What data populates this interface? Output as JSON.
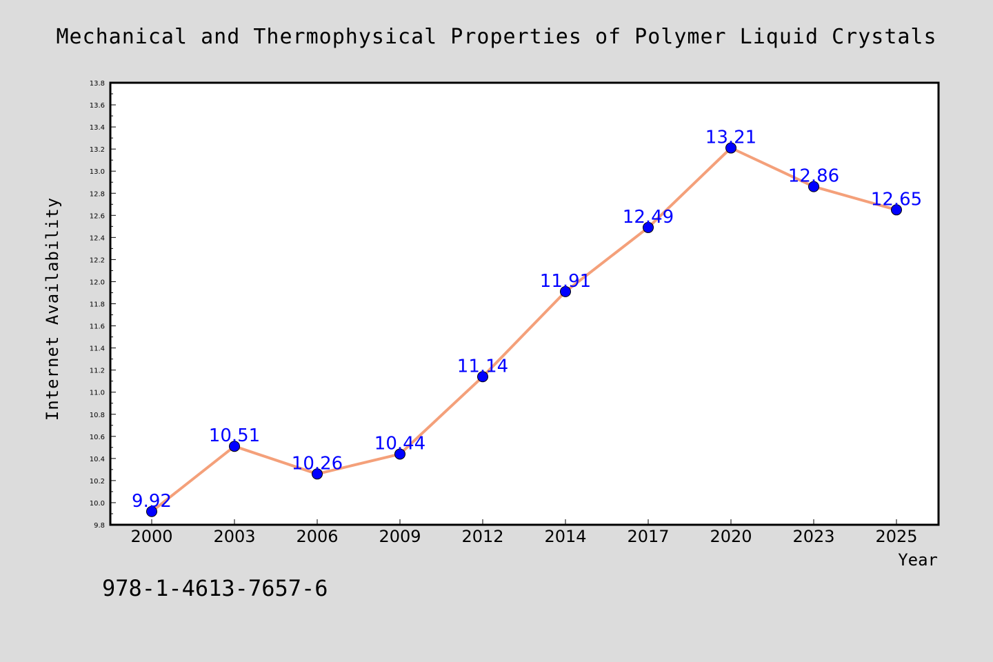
{
  "chart_data": {
    "type": "line",
    "title": "Mechanical and Thermophysical Properties of Polymer Liquid Crystals",
    "xlabel": "Year",
    "ylabel": "Internet Availability",
    "categories": [
      "2000",
      "2003",
      "2006",
      "2009",
      "2012",
      "2014",
      "2017",
      "2020",
      "2023",
      "2025"
    ],
    "series": [
      {
        "values": [
          9.92,
          10.51,
          10.26,
          10.44,
          11.14,
          11.91,
          12.49,
          13.21,
          12.86,
          12.65
        ],
        "line_color": "#f4a07a",
        "marker_color": "#0000ff"
      }
    ],
    "data_labels": [
      "9.92",
      "10.51",
      "10.26",
      "10.44",
      "11.14",
      "11.91",
      "12.49",
      "13.21",
      "12.86",
      "12.65"
    ],
    "ylim": [
      9.8,
      13.8
    ],
    "yticks": [
      "9.8",
      "10.0",
      "10.2",
      "10.4",
      "10.6",
      "10.8",
      "11.0",
      "11.2",
      "11.4",
      "11.6",
      "11.8",
      "12.0",
      "12.2",
      "12.4",
      "12.6",
      "12.8",
      "13.0",
      "13.2",
      "13.4",
      "13.6",
      "13.8"
    ],
    "grid": false,
    "legend": "none"
  },
  "footer": {
    "text": "978-1-4613-7657-6"
  },
  "colors": {
    "figure_background": "#dcdcdc",
    "plot_background": "#ffffff",
    "data_label": "#0000ff"
  }
}
